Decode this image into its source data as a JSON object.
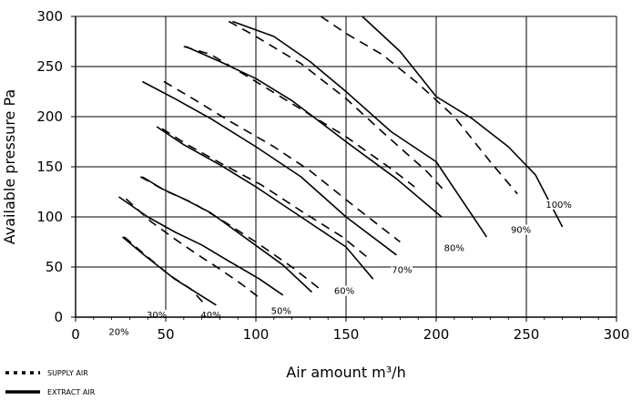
{
  "chart_data": {
    "type": "line",
    "xlabel": "Air amount m³/h",
    "ylabel": "Available pressure Pa",
    "xlim": [
      0,
      300
    ],
    "ylim": [
      0,
      300
    ],
    "x_ticks": [
      0,
      50,
      100,
      150,
      200,
      250,
      300
    ],
    "y_ticks": [
      0,
      50,
      100,
      150,
      200,
      250,
      300
    ],
    "grid": true,
    "legend": [
      {
        "label": "SUPPLY AIR",
        "style": "dashed"
      },
      {
        "label": "EXTRACT AIR",
        "style": "solid"
      }
    ],
    "series": [
      {
        "group": "20%",
        "style": "solid",
        "points": [
          [
            26,
            80
          ],
          [
            38,
            62
          ],
          [
            55,
            38
          ],
          [
            78,
            12
          ]
        ]
      },
      {
        "group": "20%",
        "style": "dashed",
        "points": [
          [
            27,
            80
          ],
          [
            40,
            60
          ],
          [
            52,
            42
          ],
          [
            64,
            28
          ],
          [
            72,
            12
          ]
        ]
      },
      {
        "group": "30%",
        "style": "solid",
        "points": [
          [
            24,
            120
          ],
          [
            40,
            100
          ],
          [
            55,
            85
          ],
          [
            70,
            72
          ],
          [
            83,
            58
          ],
          [
            102,
            38
          ],
          [
            115,
            22
          ]
        ]
      },
      {
        "group": "30%",
        "style": "dashed",
        "points": [
          [
            28,
            118
          ],
          [
            42,
            95
          ],
          [
            55,
            78
          ],
          [
            68,
            62
          ],
          [
            80,
            48
          ],
          [
            92,
            33
          ],
          [
            103,
            18
          ]
        ]
      },
      {
        "group": "40%",
        "style": "solid",
        "points": [
          [
            37,
            140
          ],
          [
            48,
            128
          ],
          [
            60,
            118
          ],
          [
            75,
            104
          ],
          [
            95,
            78
          ],
          [
            115,
            52
          ],
          [
            131,
            25
          ]
        ]
      },
      {
        "group": "40%",
        "style": "dashed",
        "points": [
          [
            36,
            140
          ],
          [
            50,
            126
          ],
          [
            65,
            114
          ],
          [
            80,
            98
          ],
          [
            100,
            75
          ],
          [
            120,
            50
          ],
          [
            137,
            26
          ]
        ]
      },
      {
        "group": "50%",
        "style": "solid",
        "points": [
          [
            45,
            190
          ],
          [
            60,
            172
          ],
          [
            80,
            152
          ],
          [
            100,
            130
          ],
          [
            125,
            100
          ],
          [
            150,
            70
          ],
          [
            165,
            38
          ]
        ]
      },
      {
        "group": "50%",
        "style": "dashed",
        "points": [
          [
            48,
            188
          ],
          [
            62,
            172
          ],
          [
            80,
            154
          ],
          [
            103,
            132
          ],
          [
            125,
            106
          ],
          [
            148,
            80
          ],
          [
            163,
            58
          ]
        ]
      },
      {
        "group": "60%",
        "style": "solid",
        "points": [
          [
            37,
            235
          ],
          [
            55,
            218
          ],
          [
            75,
            198
          ],
          [
            100,
            170
          ],
          [
            125,
            140
          ],
          [
            150,
            100
          ],
          [
            178,
            62
          ]
        ]
      },
      {
        "group": "60%",
        "style": "dashed",
        "points": [
          [
            49,
            235
          ],
          [
            65,
            218
          ],
          [
            85,
            196
          ],
          [
            110,
            170
          ],
          [
            130,
            146
          ],
          [
            155,
            110
          ],
          [
            180,
            75
          ]
        ]
      },
      {
        "group": "70%",
        "style": "solid",
        "points": [
          [
            61,
            270
          ],
          [
            80,
            255
          ],
          [
            100,
            238
          ],
          [
            120,
            216
          ],
          [
            150,
            175
          ],
          [
            178,
            138
          ],
          [
            203,
            100
          ]
        ]
      },
      {
        "group": "70%",
        "style": "dashed",
        "points": [
          [
            60,
            270
          ],
          [
            75,
            262
          ],
          [
            100,
            235
          ],
          [
            120,
            213
          ],
          [
            150,
            180
          ],
          [
            175,
            148
          ],
          [
            188,
            130
          ]
        ]
      },
      {
        "group": "80%",
        "style": "solid",
        "points": [
          [
            87,
            295
          ],
          [
            110,
            280
          ],
          [
            130,
            255
          ],
          [
            150,
            225
          ],
          [
            175,
            185
          ],
          [
            200,
            155
          ],
          [
            228,
            80
          ]
        ]
      },
      {
        "group": "80%",
        "style": "dashed",
        "points": [
          [
            85,
            295
          ],
          [
            100,
            280
          ],
          [
            125,
            253
          ],
          [
            150,
            218
          ],
          [
            170,
            185
          ],
          [
            195,
            145
          ],
          [
            205,
            125
          ]
        ]
      },
      {
        "group": "90%",
        "style": "dashed",
        "points": [
          [
            136,
            300
          ],
          [
            150,
            283
          ],
          [
            170,
            262
          ],
          [
            190,
            233
          ],
          [
            210,
            200
          ],
          [
            230,
            155
          ],
          [
            245,
            123
          ]
        ]
      },
      {
        "group": "100%",
        "style": "solid",
        "points": [
          [
            159,
            300
          ],
          [
            180,
            265
          ],
          [
            200,
            220
          ],
          [
            220,
            198
          ],
          [
            240,
            170
          ],
          [
            255,
            142
          ],
          [
            270,
            90
          ]
        ]
      }
    ],
    "curve_labels": [
      {
        "text": "20%",
        "x": 24,
        "y": -17
      },
      {
        "text": "30%",
        "x": 45,
        "y": 0
      },
      {
        "text": "40%",
        "x": 75,
        "y": 0
      },
      {
        "text": "50%",
        "x": 114,
        "y": 4
      },
      {
        "text": "60%",
        "x": 149,
        "y": 24
      },
      {
        "text": "70%",
        "x": 181,
        "y": 45
      },
      {
        "text": "80%",
        "x": 210,
        "y": 67
      },
      {
        "text": "90%",
        "x": 247,
        "y": 85
      },
      {
        "text": "100%",
        "x": 268,
        "y": 110
      }
    ]
  }
}
